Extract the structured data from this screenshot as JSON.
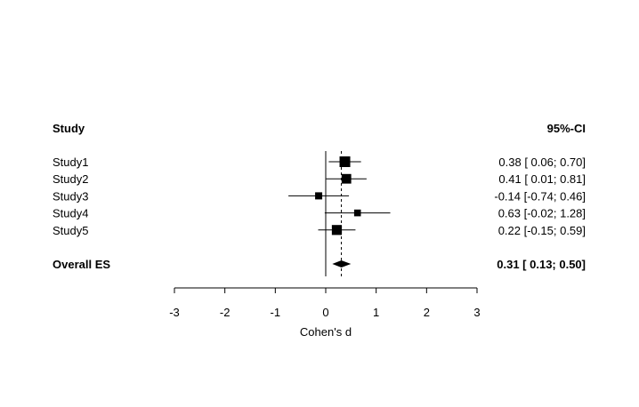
{
  "chart_data": {
    "type": "forest",
    "header_left": "Study",
    "header_right": "95%-CI",
    "xlabel": "Cohen's d",
    "xlim": [
      -3,
      3
    ],
    "xticks": [
      -3,
      -2,
      -1,
      0,
      1,
      2,
      3
    ],
    "xtick_labels": [
      "-3",
      "-2",
      "-1",
      "0",
      "1",
      "2",
      "3"
    ],
    "null_line": 0,
    "overall_line": 0.31,
    "studies": [
      {
        "name": "Study1",
        "estimate": 0.38,
        "lower": 0.06,
        "upper": 0.7,
        "ci_text": "0.38  [ 0.06; 0.70]",
        "weight": 1.0
      },
      {
        "name": "Study2",
        "estimate": 0.41,
        "lower": 0.01,
        "upper": 0.81,
        "ci_text": "0.41  [ 0.01; 0.81]",
        "weight": 0.85
      },
      {
        "name": "Study3",
        "estimate": -0.14,
        "lower": -0.74,
        "upper": 0.46,
        "ci_text": "-0.14  [-0.74; 0.46]",
        "weight": 0.5
      },
      {
        "name": "Study4",
        "estimate": 0.63,
        "lower": -0.02,
        "upper": 1.28,
        "ci_text": "0.63  [-0.02; 1.28]",
        "weight": 0.45
      },
      {
        "name": "Study5",
        "estimate": 0.22,
        "lower": -0.15,
        "upper": 0.59,
        "ci_text": "0.22  [-0.15; 0.59]",
        "weight": 0.9
      }
    ],
    "overall": {
      "name": "Overall ES",
      "estimate": 0.31,
      "lower": 0.13,
      "upper": 0.5,
      "ci_text": "0.31  [ 0.13; 0.50]"
    }
  }
}
